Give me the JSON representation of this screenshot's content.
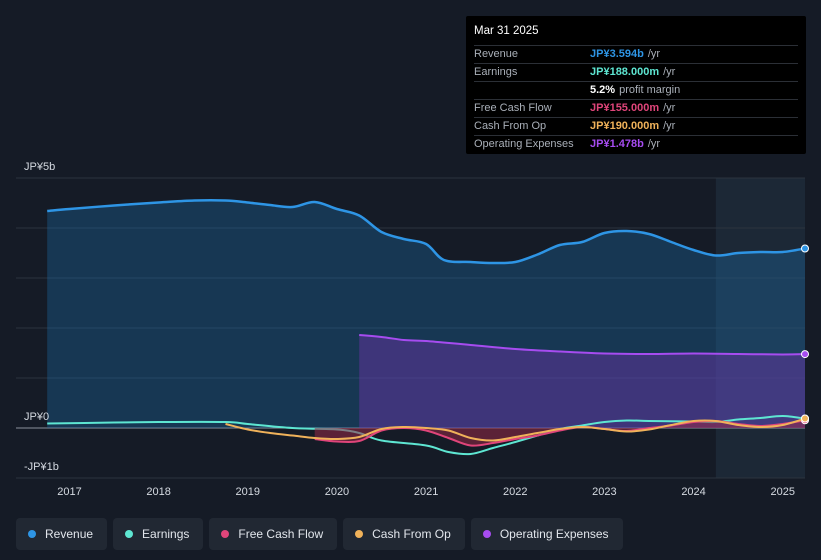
{
  "tooltip": {
    "date": "Mar 31 2025",
    "rows": [
      {
        "label": "Revenue",
        "value": "JP¥3.594b",
        "unit": "/yr",
        "color": "#2e95e5"
      },
      {
        "label": "Earnings",
        "value": "JP¥188.000m",
        "unit": "/yr",
        "color": "#5ee6d2"
      },
      {
        "label": "",
        "value": "5.2%",
        "unit": "profit margin",
        "color": "#ffffff"
      },
      {
        "label": "Free Cash Flow",
        "value": "JP¥155.000m",
        "unit": "/yr",
        "color": "#e0457a"
      },
      {
        "label": "Cash From Op",
        "value": "JP¥190.000m",
        "unit": "/yr",
        "color": "#f0b25a"
      },
      {
        "label": "Operating Expenses",
        "value": "JP¥1.478b",
        "unit": "/yr",
        "color": "#a64cf0"
      }
    ]
  },
  "legend": [
    {
      "label": "Revenue",
      "color": "#2e95e5"
    },
    {
      "label": "Earnings",
      "color": "#5ee6d2"
    },
    {
      "label": "Free Cash Flow",
      "color": "#e0457a"
    },
    {
      "label": "Cash From Op",
      "color": "#f0b25a"
    },
    {
      "label": "Operating Expenses",
      "color": "#a64cf0"
    }
  ],
  "chart_data": {
    "type": "area",
    "unit": "JP¥ billions",
    "ylim": [
      -1,
      5
    ],
    "y_tick_labels": [
      {
        "value": 5,
        "label": "JP¥5b"
      },
      {
        "value": 0,
        "label": "JP¥0"
      },
      {
        "value": -1,
        "label": "-JP¥1b"
      }
    ],
    "x_tick_labels": [
      {
        "value": 2017,
        "label": "2017"
      },
      {
        "value": 2018,
        "label": "2018"
      },
      {
        "value": 2019,
        "label": "2019"
      },
      {
        "value": 2020,
        "label": "2020"
      },
      {
        "value": 2021,
        "label": "2021"
      },
      {
        "value": 2022,
        "label": "2022"
      },
      {
        "value": 2023,
        "label": "2023"
      },
      {
        "value": 2024,
        "label": "2024"
      },
      {
        "value": 2025,
        "label": "2025"
      }
    ],
    "xlim": [
      2016.4,
      2025.25
    ],
    "forecast_shade_from": 2024.25,
    "series": [
      {
        "name": "Revenue",
        "color": "#2e95e5",
        "fill": true,
        "points": [
          [
            2016.75,
            4.34
          ],
          [
            2017.0,
            4.38
          ],
          [
            2017.5,
            4.45
          ],
          [
            2018.0,
            4.51
          ],
          [
            2018.4,
            4.55
          ],
          [
            2018.75,
            4.55
          ],
          [
            2019.0,
            4.51
          ],
          [
            2019.25,
            4.46
          ],
          [
            2019.5,
            4.42
          ],
          [
            2019.75,
            4.52
          ],
          [
            2020.0,
            4.38
          ],
          [
            2020.25,
            4.25
          ],
          [
            2020.5,
            3.92
          ],
          [
            2020.75,
            3.78
          ],
          [
            2021.0,
            3.68
          ],
          [
            2021.2,
            3.36
          ],
          [
            2021.5,
            3.32
          ],
          [
            2021.75,
            3.3
          ],
          [
            2022.0,
            3.32
          ],
          [
            2022.25,
            3.47
          ],
          [
            2022.5,
            3.66
          ],
          [
            2022.75,
            3.72
          ],
          [
            2023.0,
            3.9
          ],
          [
            2023.25,
            3.94
          ],
          [
            2023.5,
            3.88
          ],
          [
            2023.75,
            3.72
          ],
          [
            2024.0,
            3.56
          ],
          [
            2024.25,
            3.45
          ],
          [
            2024.5,
            3.5
          ],
          [
            2024.75,
            3.52
          ],
          [
            2025.0,
            3.52
          ],
          [
            2025.25,
            3.59
          ]
        ]
      },
      {
        "name": "Operating Expenses",
        "color": "#a64cf0",
        "fill": true,
        "points": [
          [
            2020.25,
            1.86
          ],
          [
            2020.5,
            1.82
          ],
          [
            2020.75,
            1.76
          ],
          [
            2021.0,
            1.74
          ],
          [
            2021.5,
            1.66
          ],
          [
            2022.0,
            1.58
          ],
          [
            2022.5,
            1.53
          ],
          [
            2023.0,
            1.49
          ],
          [
            2023.5,
            1.48
          ],
          [
            2024.0,
            1.49
          ],
          [
            2024.5,
            1.48
          ],
          [
            2025.0,
            1.47
          ],
          [
            2025.25,
            1.478
          ]
        ]
      },
      {
        "name": "Earnings",
        "color": "#5ee6d2",
        "fill": false,
        "points": [
          [
            2016.75,
            0.09
          ],
          [
            2017.5,
            0.11
          ],
          [
            2018.0,
            0.12
          ],
          [
            2018.75,
            0.12
          ],
          [
            2019.0,
            0.08
          ],
          [
            2019.5,
            0.0
          ],
          [
            2020.0,
            -0.03
          ],
          [
            2020.25,
            -0.1
          ],
          [
            2020.5,
            -0.25
          ],
          [
            2021.0,
            -0.35
          ],
          [
            2021.25,
            -0.48
          ],
          [
            2021.5,
            -0.52
          ],
          [
            2021.75,
            -0.4
          ],
          [
            2022.0,
            -0.28
          ],
          [
            2022.25,
            -0.15
          ],
          [
            2022.5,
            -0.02
          ],
          [
            2022.75,
            0.05
          ],
          [
            2023.0,
            0.12
          ],
          [
            2023.25,
            0.15
          ],
          [
            2023.5,
            0.14
          ],
          [
            2024.0,
            0.13
          ],
          [
            2024.25,
            0.12
          ],
          [
            2024.5,
            0.17
          ],
          [
            2024.75,
            0.2
          ],
          [
            2025.0,
            0.24
          ],
          [
            2025.25,
            0.188
          ]
        ]
      },
      {
        "name": "Free Cash Flow",
        "color": "#e0457a",
        "fill": true,
        "points": [
          [
            2019.75,
            -0.22
          ],
          [
            2020.0,
            -0.27
          ],
          [
            2020.25,
            -0.26
          ],
          [
            2020.5,
            -0.05
          ],
          [
            2020.75,
            0.0
          ],
          [
            2021.0,
            -0.05
          ],
          [
            2021.25,
            -0.2
          ],
          [
            2021.5,
            -0.35
          ],
          [
            2021.75,
            -0.3
          ],
          [
            2022.0,
            -0.22
          ],
          [
            2022.25,
            -0.15
          ],
          [
            2022.5,
            -0.05
          ],
          [
            2022.75,
            0.02
          ],
          [
            2023.0,
            -0.02
          ],
          [
            2023.25,
            -0.06
          ],
          [
            2023.5,
            0.0
          ],
          [
            2023.75,
            0.05
          ],
          [
            2024.0,
            0.12
          ],
          [
            2024.25,
            0.14
          ],
          [
            2024.5,
            0.08
          ],
          [
            2024.75,
            0.04
          ],
          [
            2025.0,
            0.08
          ],
          [
            2025.25,
            0.155
          ]
        ]
      },
      {
        "name": "Cash From Op",
        "color": "#f0b25a",
        "fill": false,
        "points": [
          [
            2018.75,
            0.08
          ],
          [
            2019.0,
            -0.03
          ],
          [
            2019.25,
            -0.1
          ],
          [
            2019.5,
            -0.15
          ],
          [
            2019.75,
            -0.2
          ],
          [
            2020.0,
            -0.22
          ],
          [
            2020.25,
            -0.18
          ],
          [
            2020.5,
            -0.02
          ],
          [
            2020.75,
            0.02
          ],
          [
            2021.0,
            0.0
          ],
          [
            2021.25,
            -0.05
          ],
          [
            2021.5,
            -0.2
          ],
          [
            2021.75,
            -0.25
          ],
          [
            2022.0,
            -0.18
          ],
          [
            2022.25,
            -0.1
          ],
          [
            2022.5,
            -0.02
          ],
          [
            2022.75,
            0.02
          ],
          [
            2023.0,
            -0.02
          ],
          [
            2023.25,
            -0.07
          ],
          [
            2023.5,
            -0.03
          ],
          [
            2023.75,
            0.06
          ],
          [
            2024.0,
            0.14
          ],
          [
            2024.25,
            0.14
          ],
          [
            2024.5,
            0.06
          ],
          [
            2024.75,
            0.02
          ],
          [
            2025.0,
            0.06
          ],
          [
            2025.25,
            0.19
          ]
        ]
      }
    ]
  }
}
